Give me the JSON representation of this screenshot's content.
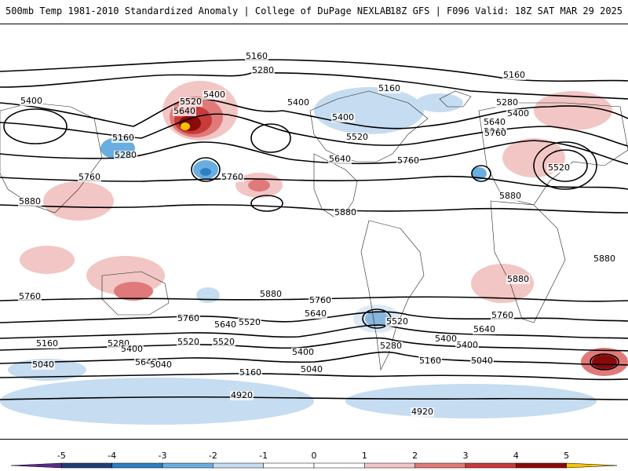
{
  "header": {
    "title_left": "500mb Temp 1981-2010 Standardized Anomaly | College of DuPage NEXLAB",
    "title_right": "18Z GFS | F096 Valid: 18Z SAT MAR 29 2025"
  },
  "colorbar": {
    "ticks": [
      "-5",
      "-4",
      "-3",
      "-2",
      "-1",
      "0",
      "1",
      "2",
      "3",
      "4",
      "5"
    ],
    "colors": [
      "#5b2a8a",
      "#1f3f7a",
      "#2c7fc4",
      "#6aaee0",
      "#c6dcf0",
      "#ffffff",
      "#ffffff",
      "#f2c6c4",
      "#e07a7a",
      "#c93a3a",
      "#8a0a0a",
      "#f5c400"
    ]
  },
  "contours": [
    {
      "value": "5160"
    },
    {
      "value": "5280"
    },
    {
      "value": "5400"
    },
    {
      "value": "5520"
    },
    {
      "value": "5640"
    },
    {
      "value": "5760"
    },
    {
      "value": "5880"
    },
    {
      "value": "5040"
    },
    {
      "value": "4920"
    }
  ],
  "contour_labels": [
    "5160",
    "5280",
    "5160",
    "5400",
    "5400",
    "5520",
    "5640",
    "5400",
    "5400",
    "5160",
    "5280",
    "5160",
    "5280",
    "5400",
    "5640",
    "5760",
    "5520",
    "5640",
    "5640",
    "5520",
    "5760",
    "5760",
    "5760",
    "5880",
    "5880",
    "5880",
    "5880",
    "5880",
    "5880",
    "5760",
    "5760",
    "5760",
    "5640",
    "5520",
    "5520",
    "5640",
    "5760",
    "5640",
    "5520",
    "5400",
    "5160",
    "5280",
    "5400",
    "5640",
    "5520",
    "5400",
    "5280",
    "5160",
    "5040",
    "4920",
    "5040",
    "5160",
    "5400",
    "5040",
    "4920",
    "5040"
  ]
}
